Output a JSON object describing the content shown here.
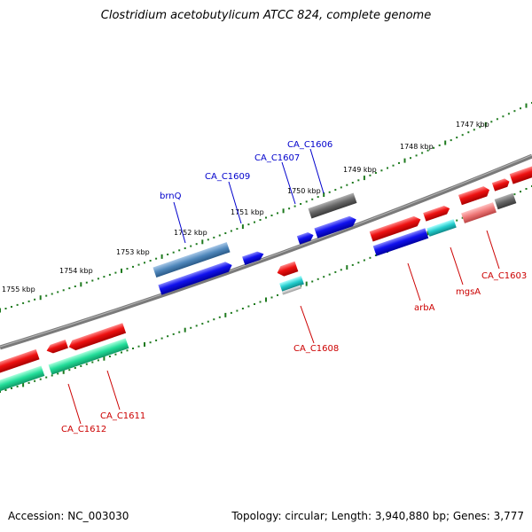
{
  "title": "Clostridium acetobutylicum ATCC 824, complete genome",
  "footer": {
    "accession": "Accession: NC_003030",
    "summary": "Topology: circular; Length: 3,940,880 bp; Genes: 3,777"
  },
  "scale_labels": [
    "1747 kbp",
    "1748 kbp",
    "1749 kbp",
    "1750 kbp",
    "1751 kbp",
    "1752 kbp",
    "1753 kbp",
    "1754 kbp",
    "1755 kbp"
  ],
  "gene_labels": {
    "forward": [
      "brnQ",
      "CA_C1609",
      "CA_C1607",
      "CA_C1606"
    ],
    "reverse": [
      "CA_C1612",
      "CA_C1611",
      "CA_C1608",
      "arbA",
      "mgsA",
      "CA_C1603"
    ]
  },
  "colors": {
    "forward_label": "#0000cc",
    "reverse_label": "#cc0000",
    "backbone": "#808080",
    "tick": "#1e7a1e",
    "red": "#ee1111",
    "blue": "#1111ee",
    "steel": "#4f87bb",
    "gray": "#666666",
    "teal": "#22dd99",
    "cyan": "#22cccc",
    "pink": "#ee7777"
  }
}
